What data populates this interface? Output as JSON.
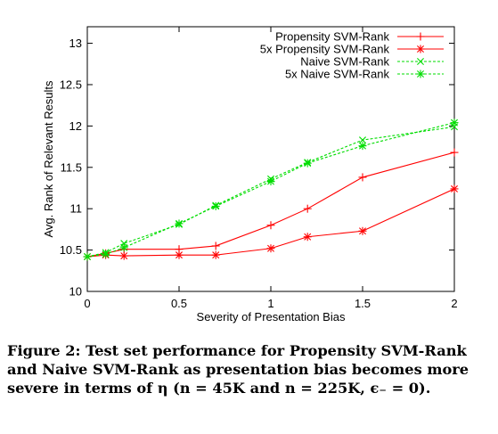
{
  "chart_data": {
    "type": "line",
    "xlabel": "Severity of Presentation Bias",
    "ylabel": "Avg. Rank of Relevant Results",
    "xlim": [
      0,
      2
    ],
    "ylim": [
      10,
      13.2
    ],
    "xticks": [
      "0",
      "0.5",
      "1",
      "1.5",
      "2"
    ],
    "yticks": [
      "10",
      "10.5",
      "11",
      "11.5",
      "12",
      "12.5",
      "13"
    ],
    "grid": false,
    "legend_position": "top-right",
    "series": [
      {
        "name": "Propensity SVM-Rank",
        "color": "#ff0000",
        "dash": "solid",
        "marker": "plus",
        "x": [
          0,
          0.1,
          0.2,
          0.5,
          0.7,
          1.0,
          1.2,
          1.5,
          2.0
        ],
        "y": [
          10.42,
          10.46,
          10.51,
          10.51,
          10.55,
          10.8,
          11.0,
          11.38,
          11.68
        ]
      },
      {
        "name": "5x Propensity SVM-Rank",
        "color": "#ff0000",
        "dash": "solid",
        "marker": "star",
        "x": [
          0,
          0.1,
          0.2,
          0.5,
          0.7,
          1.0,
          1.2,
          1.5,
          2.0
        ],
        "y": [
          10.42,
          10.44,
          10.43,
          10.44,
          10.44,
          10.52,
          10.66,
          10.73,
          11.24
        ]
      },
      {
        "name": "Naive SVM-Rank",
        "color": "#00dd00",
        "dash": "dashed",
        "marker": "cross",
        "x": [
          0,
          0.1,
          0.2,
          0.5,
          0.7,
          1.0,
          1.2,
          1.5,
          2.0
        ],
        "y": [
          10.42,
          10.47,
          10.58,
          10.81,
          11.04,
          11.36,
          11.56,
          11.83,
          11.99
        ]
      },
      {
        "name": "5x Naive SVM-Rank",
        "color": "#00dd00",
        "dash": "dashed",
        "marker": "star",
        "x": [
          0,
          0.1,
          0.2,
          0.5,
          0.7,
          1.0,
          1.2,
          1.5,
          2.0
        ],
        "y": [
          10.42,
          10.45,
          10.53,
          10.82,
          11.03,
          11.33,
          11.55,
          11.76,
          12.04
        ]
      }
    ]
  },
  "caption": {
    "text": "Figure 2: Test set performance for Propensity SVM-Rank and Naive SVM-Rank as presentation bias becomes more severe in terms of η (n = 45K and n = 225K, ϵ₋ = 0)."
  }
}
